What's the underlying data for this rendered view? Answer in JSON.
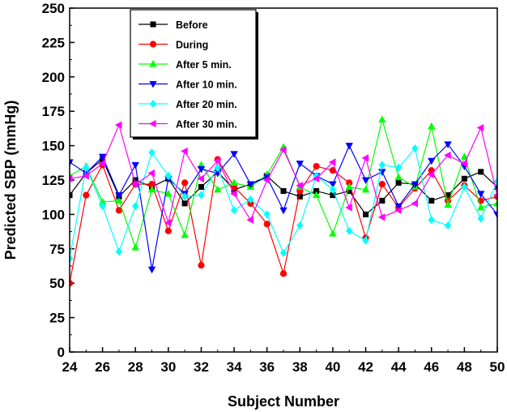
{
  "chart_data": {
    "type": "line",
    "title": "",
    "xlabel": "Subject Number",
    "ylabel": "Predicted SBP (mmHg)",
    "xlim": [
      24,
      50
    ],
    "ylim": [
      0,
      250
    ],
    "xticks": [
      24,
      26,
      28,
      30,
      32,
      34,
      36,
      38,
      40,
      42,
      44,
      46,
      48,
      50
    ],
    "yticks": [
      0,
      25,
      50,
      75,
      100,
      125,
      150,
      175,
      200,
      225,
      250
    ],
    "x": [
      24,
      25,
      26,
      27,
      28,
      29,
      30,
      31,
      32,
      33,
      34,
      35,
      36,
      37,
      38,
      39,
      40,
      41,
      42,
      43,
      44,
      45,
      46,
      47,
      48,
      49,
      50
    ],
    "legend_position": "top-left",
    "series": [
      {
        "name": "Before",
        "color": "#000000",
        "marker": "square",
        "values": [
          114,
          130,
          140,
          113,
          125,
          120,
          126,
          108,
          120,
          131,
          118,
          122,
          128,
          117,
          113,
          117,
          114,
          117,
          100,
          110,
          123,
          122,
          110,
          114,
          126,
          131,
          120
        ]
      },
      {
        "name": "During",
        "color": "#ff0000",
        "marker": "circle",
        "values": [
          50,
          114,
          136,
          103,
          122,
          122,
          88,
          123,
          63,
          140,
          120,
          108,
          93,
          57,
          117,
          135,
          132,
          123,
          83,
          122,
          105,
          119,
          132,
          110,
          121,
          110,
          113
        ]
      },
      {
        "name": "After 5 min.",
        "color": "#00ff00",
        "marker": "triangle-up",
        "values": [
          128,
          135,
          109,
          110,
          76,
          118,
          115,
          85,
          136,
          118,
          123,
          120,
          129,
          149,
          120,
          114,
          86,
          120,
          118,
          169,
          127,
          120,
          164,
          107,
          142,
          105,
          108
        ]
      },
      {
        "name": "After 10 min.",
        "color": "#0000ff",
        "marker": "triangle-down",
        "values": [
          138,
          130,
          142,
          114,
          136,
          60,
          126,
          115,
          133,
          130,
          144,
          122,
          127,
          103,
          137,
          128,
          122,
          150,
          125,
          131,
          106,
          122,
          139,
          151,
          135,
          115,
          100
        ]
      },
      {
        "name": "After 20 min.",
        "color": "#00ffff",
        "marker": "diamond",
        "values": [
          68,
          134,
          106,
          73,
          106,
          145,
          128,
          113,
          114,
          134,
          103,
          111,
          100,
          72,
          92,
          128,
          118,
          88,
          81,
          136,
          134,
          148,
          96,
          92,
          120,
          97,
          124
        ]
      },
      {
        "name": "After 30 min.",
        "color": "#ff00ff",
        "marker": "triangle-left",
        "values": [
          126,
          128,
          137,
          165,
          122,
          130,
          94,
          146,
          126,
          139,
          115,
          96,
          125,
          147,
          121,
          126,
          138,
          105,
          141,
          98,
          103,
          108,
          129,
          143,
          137,
          163,
          114
        ]
      }
    ]
  }
}
